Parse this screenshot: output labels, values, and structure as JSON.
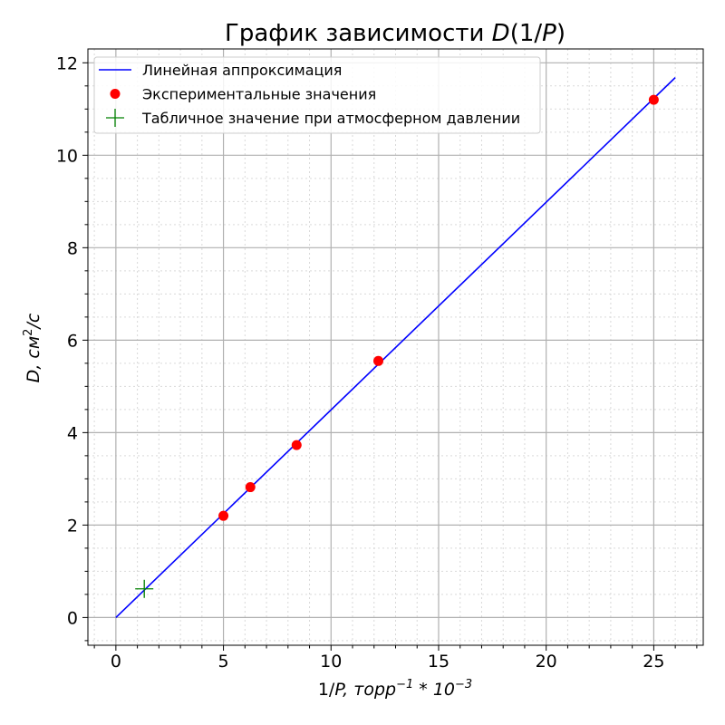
{
  "chart_data": {
    "type": "line",
    "title": "График зависимости D(1/P)",
    "xlabel": "1/P, торр⁻¹ * 10⁻³",
    "ylabel": "D, см²/с",
    "xlim": [
      -1.3,
      27.3
    ],
    "ylim": [
      -0.6,
      12.3
    ],
    "x_ticks": [
      "0",
      "5",
      "10",
      "15",
      "20",
      "25"
    ],
    "y_ticks": [
      "0",
      "2",
      "4",
      "6",
      "8",
      "10",
      "12"
    ],
    "grid": true,
    "minor_grid": true,
    "legend_position": "top-left",
    "series": [
      {
        "name": "Линейная аппроксимация",
        "kind": "line",
        "color": "#0000ff",
        "x": [
          0,
          26
        ],
        "y": [
          0,
          11.68
        ]
      },
      {
        "name": "Экспериментальные значения",
        "kind": "points",
        "marker": "circle",
        "color": "#ff0000",
        "x": [
          5.0,
          6.25,
          8.4,
          12.2,
          25.0
        ],
        "y": [
          2.2,
          2.82,
          3.73,
          5.55,
          11.2
        ]
      },
      {
        "name": "Табличное значение при атмосферном давлении",
        "kind": "points",
        "marker": "plus",
        "color": "#008000",
        "x": [
          1.32
        ],
        "y": [
          0.62
        ]
      }
    ]
  }
}
